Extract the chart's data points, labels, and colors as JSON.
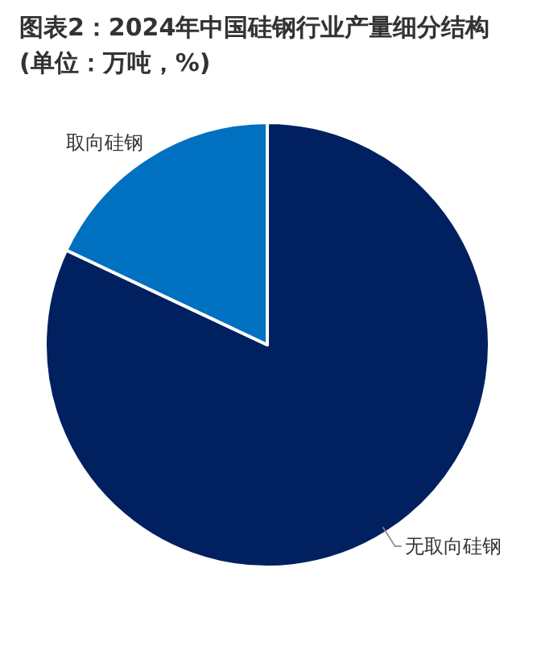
{
  "chart_data": {
    "type": "pie",
    "title": "图表2：2024年中国硅钢行业产量细分结构(单位：万吨，%)",
    "categories": [
      "无取向硅钢",
      "取向硅钢"
    ],
    "values": [
      82,
      18
    ],
    "colors": [
      "#002060",
      "#0070c0"
    ],
    "legend": false
  }
}
